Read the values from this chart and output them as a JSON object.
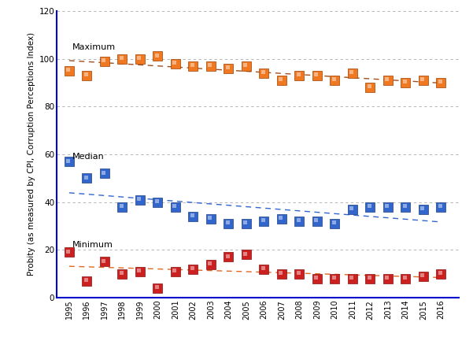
{
  "years": [
    1995,
    1996,
    1997,
    1998,
    1999,
    2000,
    2001,
    2002,
    2003,
    2004,
    2005,
    2006,
    2007,
    2008,
    2009,
    2010,
    2011,
    2012,
    2013,
    2014,
    2015,
    2016
  ],
  "maximum": [
    95,
    93,
    99,
    100,
    100,
    101,
    98,
    97,
    97,
    96,
    97,
    94,
    91,
    93,
    93,
    91,
    94,
    88,
    91,
    90,
    91,
    90
  ],
  "median": [
    57,
    50,
    52,
    38,
    41,
    40,
    38,
    34,
    33,
    31,
    31,
    32,
    33,
    32,
    32,
    31,
    37,
    38,
    38,
    38,
    37,
    38
  ],
  "minimum": [
    19,
    7,
    15,
    10,
    11,
    4,
    11,
    12,
    14,
    17,
    18,
    12,
    10,
    10,
    8,
    8,
    8,
    8,
    8,
    8,
    9,
    10
  ],
  "ylim": [
    0,
    120
  ],
  "yticks": [
    0,
    20,
    40,
    60,
    80,
    100,
    120
  ],
  "ylabel": "Probity (as measured by CPI, Corruption Perceptions Index)",
  "bg_color": "#ffffff",
  "plot_bg_color": "#ffffff",
  "grid_color": "#aaaaaa",
  "max_color": "#f07820",
  "max_dark": "#a04000",
  "median_color": "#3366cc",
  "median_dark": "#1a3d80",
  "min_color": "#cc2020",
  "min_dark": "#881010",
  "trend_max_color": "#a05020",
  "trend_median_color": "#3366cc",
  "trend_min_color": "#e06820",
  "axis_color": "#0000cc",
  "label_maximum": "Maximum",
  "label_median": "Median",
  "label_minimum": "Minimum",
  "title_fontsize": 8,
  "tick_fontsize": 7,
  "ylabel_fontsize": 7.5
}
